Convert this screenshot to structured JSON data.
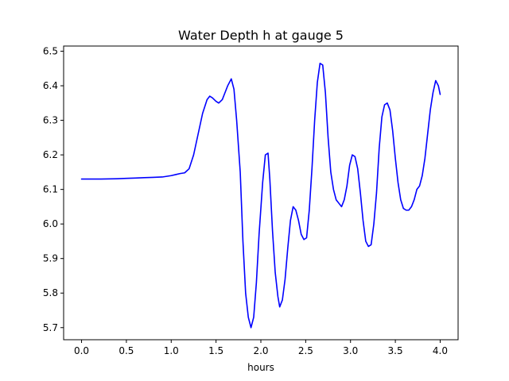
{
  "chart_data": {
    "type": "line",
    "title": "Water Depth h at gauge 5",
    "xlabel": "hours",
    "ylabel": "",
    "xlim": [
      -0.2,
      4.2
    ],
    "ylim": [
      5.665,
      6.515
    ],
    "xticks": [
      0.0,
      0.5,
      1.0,
      1.5,
      2.0,
      2.5,
      3.0,
      3.5,
      4.0
    ],
    "xtick_labels": [
      "0.0",
      "0.5",
      "1.0",
      "1.5",
      "2.0",
      "2.5",
      "3.0",
      "3.5",
      "4.0"
    ],
    "yticks": [
      5.7,
      5.8,
      5.9,
      6.0,
      6.1,
      6.2,
      6.3,
      6.4,
      6.5
    ],
    "ytick_labels": [
      "5.7",
      "5.8",
      "5.9",
      "6.0",
      "6.1",
      "6.2",
      "6.3",
      "6.4",
      "6.5"
    ],
    "grid": false,
    "legend": "none",
    "series": [
      {
        "color": "#0000ff",
        "x": [
          0.0,
          0.2,
          0.4,
          0.5,
          0.6,
          0.7,
          0.8,
          0.9,
          1.0,
          1.05,
          1.1,
          1.15,
          1.2,
          1.25,
          1.3,
          1.35,
          1.4,
          1.43,
          1.46,
          1.5,
          1.53,
          1.57,
          1.6,
          1.63,
          1.67,
          1.7,
          1.73,
          1.77,
          1.8,
          1.83,
          1.86,
          1.89,
          1.92,
          1.95,
          1.98,
          2.02,
          2.05,
          2.08,
          2.1,
          2.13,
          2.16,
          2.19,
          2.21,
          2.24,
          2.27,
          2.3,
          2.33,
          2.36,
          2.39,
          2.42,
          2.45,
          2.48,
          2.51,
          2.54,
          2.57,
          2.6,
          2.63,
          2.66,
          2.69,
          2.72,
          2.75,
          2.78,
          2.81,
          2.84,
          2.87,
          2.9,
          2.93,
          2.96,
          2.99,
          3.02,
          3.05,
          3.08,
          3.11,
          3.14,
          3.17,
          3.2,
          3.23,
          3.26,
          3.29,
          3.32,
          3.35,
          3.38,
          3.41,
          3.44,
          3.47,
          3.5,
          3.53,
          3.56,
          3.59,
          3.62,
          3.65,
          3.68,
          3.71,
          3.74,
          3.77,
          3.8,
          3.83,
          3.86,
          3.89,
          3.92,
          3.95,
          3.98,
          4.0
        ],
        "y": [
          6.13,
          6.13,
          6.131,
          6.132,
          6.133,
          6.134,
          6.135,
          6.136,
          6.14,
          6.143,
          6.146,
          6.148,
          6.16,
          6.2,
          6.26,
          6.32,
          6.36,
          6.37,
          6.365,
          6.355,
          6.35,
          6.36,
          6.38,
          6.4,
          6.42,
          6.39,
          6.3,
          6.15,
          5.95,
          5.8,
          5.73,
          5.7,
          5.73,
          5.83,
          5.97,
          6.12,
          6.2,
          6.205,
          6.13,
          5.98,
          5.86,
          5.79,
          5.76,
          5.78,
          5.84,
          5.93,
          6.01,
          6.05,
          6.04,
          6.01,
          5.97,
          5.955,
          5.96,
          6.04,
          6.16,
          6.3,
          6.41,
          6.465,
          6.46,
          6.38,
          6.25,
          6.15,
          6.1,
          6.07,
          6.06,
          6.05,
          6.07,
          6.11,
          6.17,
          6.2,
          6.195,
          6.16,
          6.09,
          6.01,
          5.95,
          5.935,
          5.94,
          6.0,
          6.09,
          6.22,
          6.31,
          6.345,
          6.35,
          6.33,
          6.27,
          6.19,
          6.12,
          6.07,
          6.045,
          6.04,
          6.04,
          6.05,
          6.07,
          6.1,
          6.11,
          6.14,
          6.19,
          6.26,
          6.33,
          6.38,
          6.415,
          6.4,
          6.375
        ]
      }
    ]
  }
}
